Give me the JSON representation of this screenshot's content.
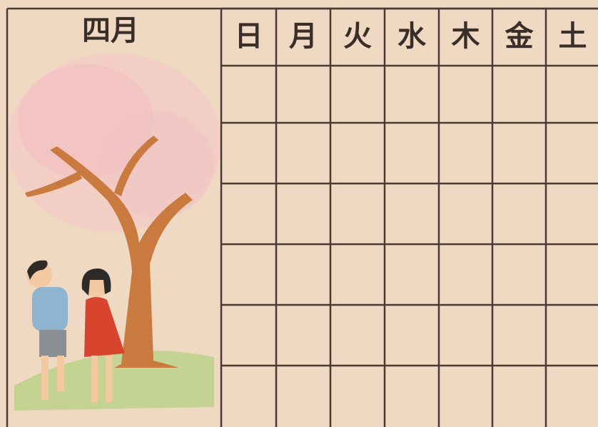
{
  "calendar": {
    "month": "四月",
    "weekdays": [
      "日",
      "月",
      "火",
      "水",
      "木",
      "金",
      "土"
    ]
  }
}
